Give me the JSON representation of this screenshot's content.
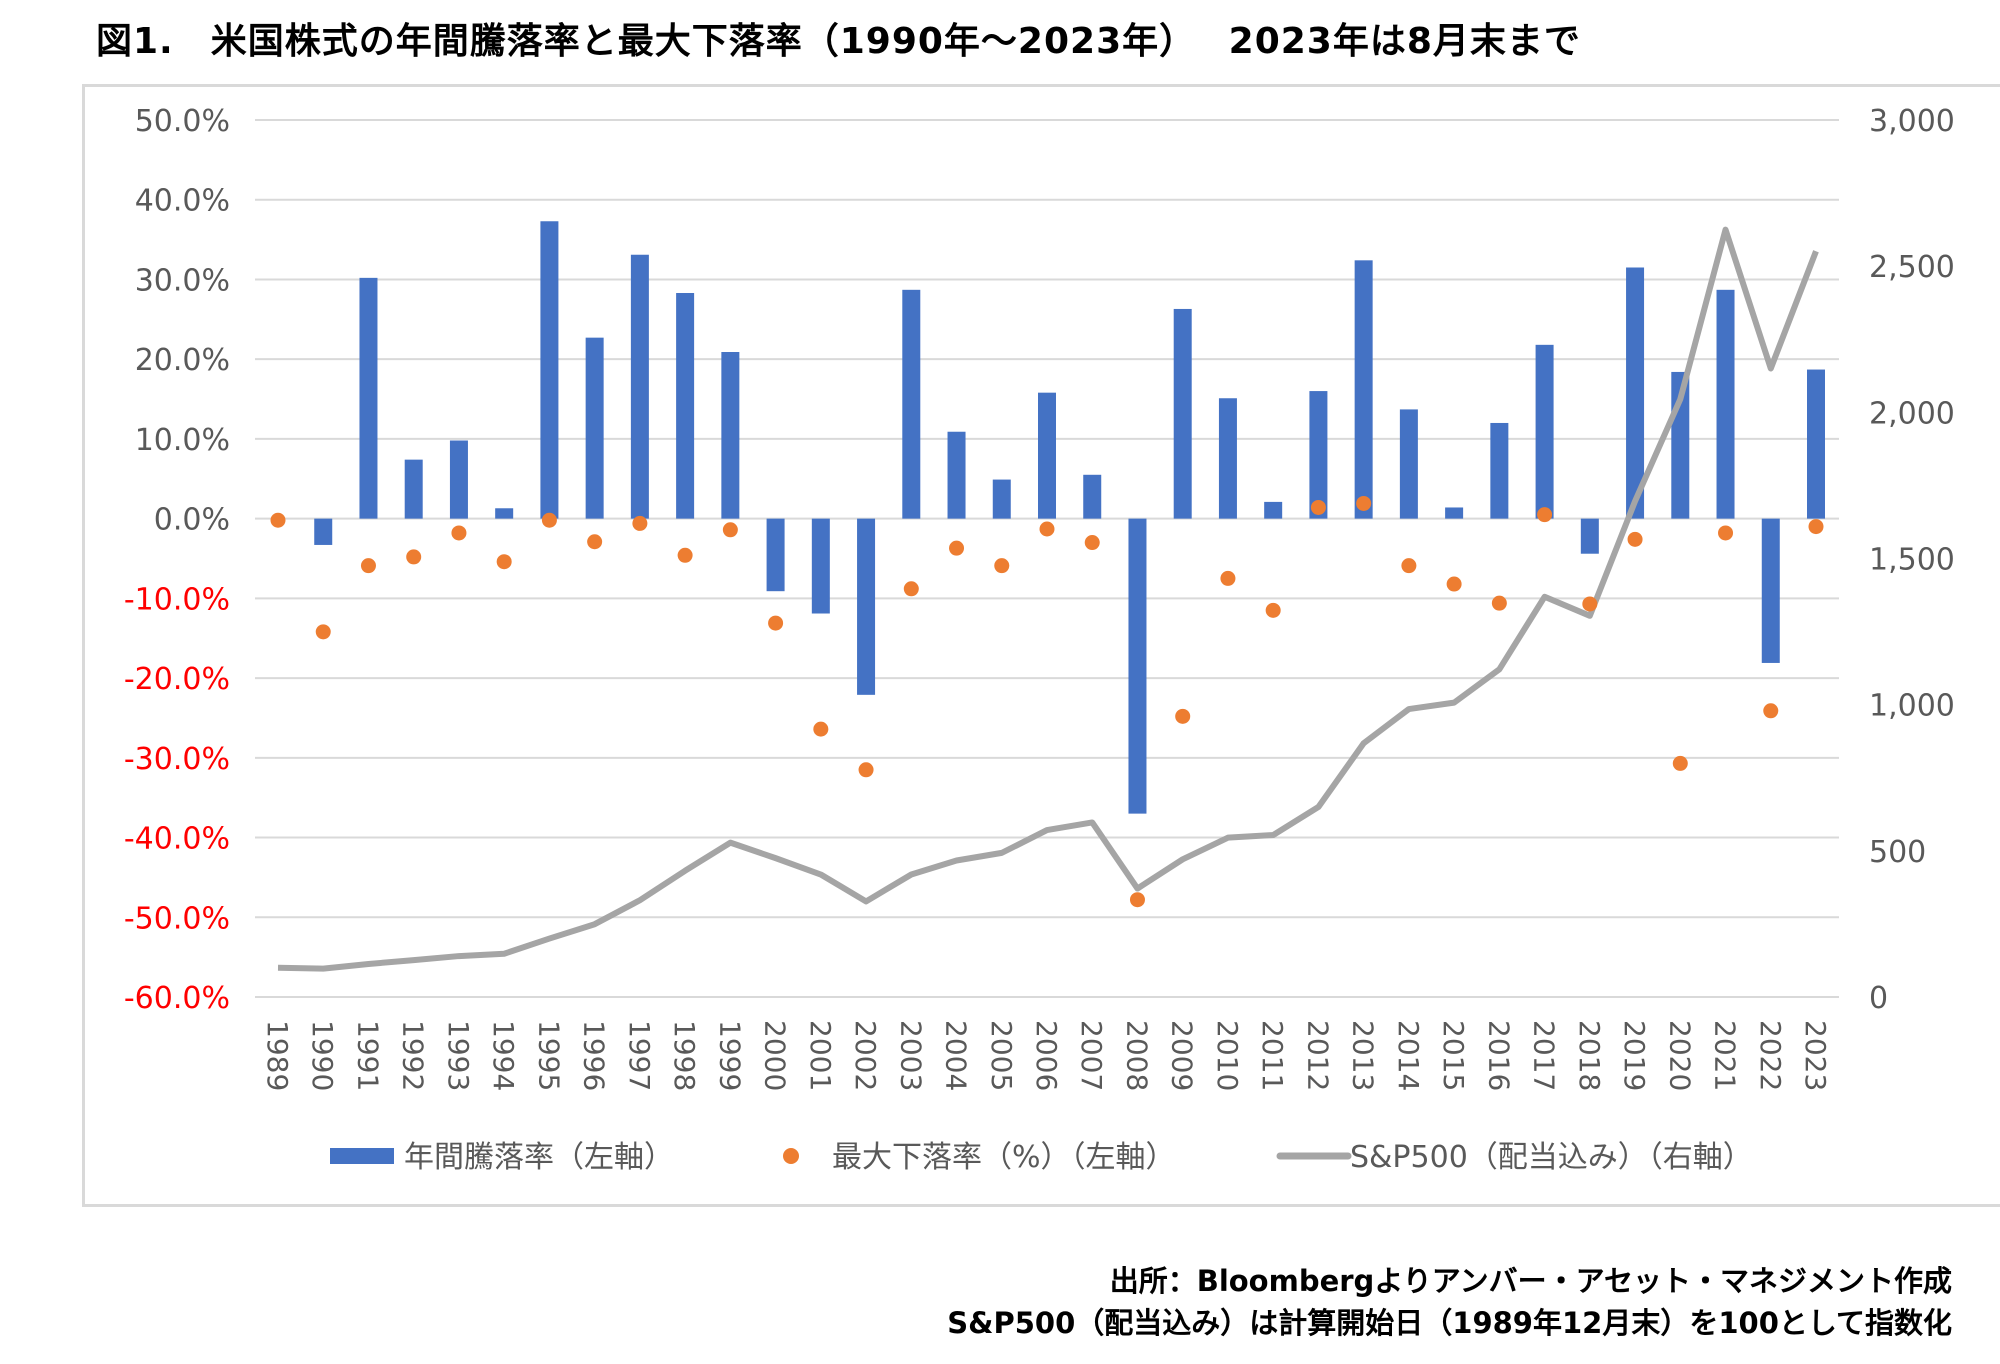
{
  "title": "図1.　米国株式の年間騰落率と最大下落率（1990年～2023年）　 2023年は8月末まで",
  "source_lines": [
    "出所：Bloombergよりアンバー・アセット・マネジメント作成",
    "S&P500（配当込み）は計算開始日（1989年12月末）を100として指数化"
  ],
  "chart_data": {
    "type": "bar+scatter+line",
    "categories": [
      "1989",
      "1990",
      "1991",
      "1992",
      "1993",
      "1994",
      "1995",
      "1996",
      "1997",
      "1998",
      "1999",
      "2000",
      "2001",
      "2002",
      "2003",
      "2004",
      "2005",
      "2006",
      "2007",
      "2008",
      "2009",
      "2010",
      "2011",
      "2012",
      "2013",
      "2014",
      "2015",
      "2016",
      "2017",
      "2018",
      "2019",
      "2020",
      "2021",
      "2022",
      "2023"
    ],
    "left_axis": {
      "ylim": [
        -60,
        50
      ],
      "ticks": [
        "50.0%",
        "40.0%",
        "30.0%",
        "20.0%",
        "10.0%",
        "0.0%",
        "-10.0%",
        "-20.0%",
        "-30.0%",
        "-40.0%",
        "-50.0%",
        "-60.0%"
      ],
      "negative_color": "#ff0000"
    },
    "right_axis": {
      "ylim": [
        0,
        3000
      ],
      "ticks": [
        "3,000",
        "2,500",
        "2,000",
        "1,500",
        "1,000",
        "500",
        "0"
      ]
    },
    "grid": true,
    "legend_position": "bottom",
    "series": [
      {
        "name": "年間騰落率（左軸）",
        "type": "bar",
        "axis": "left",
        "color": "#4472c4",
        "values": [
          0,
          -3.3,
          30.2,
          7.4,
          9.8,
          1.3,
          37.3,
          22.7,
          33.1,
          28.3,
          20.9,
          -9.1,
          -11.9,
          -22.1,
          28.7,
          10.9,
          4.9,
          15.8,
          5.5,
          -37.0,
          26.3,
          15.1,
          2.1,
          16.0,
          32.4,
          13.7,
          1.4,
          12.0,
          21.8,
          -4.4,
          31.5,
          18.4,
          28.7,
          -18.1,
          18.7
        ]
      },
      {
        "name": "最大下落率（%）（左軸）",
        "type": "scatter",
        "axis": "left",
        "color": "#ed7d31",
        "values": [
          -0.2,
          -14.2,
          -5.9,
          -4.8,
          -1.8,
          -5.4,
          -0.2,
          -2.9,
          -0.6,
          -4.6,
          -1.4,
          -13.1,
          -26.4,
          -31.5,
          -8.8,
          -3.7,
          -5.9,
          -1.3,
          -3.0,
          -47.8,
          -24.8,
          -7.5,
          -11.5,
          1.4,
          1.9,
          -5.9,
          -8.2,
          -10.6,
          0.5,
          -10.7,
          -2.6,
          -30.7,
          -1.8,
          -24.1,
          -1.0
        ]
      },
      {
        "name": "S&P500（配当込み）（右軸）",
        "type": "line",
        "axis": "right",
        "color": "#a5a5a5",
        "values": [
          100,
          97,
          113,
          126,
          140,
          148,
          200,
          249,
          331,
          432,
          528,
          475,
          419,
          327,
          419,
          467,
          493,
          571,
          597,
          371,
          471,
          545,
          554,
          650,
          868,
          985,
          1007,
          1121,
          1369,
          1304,
          1696,
          2045,
          2625,
          2150,
          2551
        ]
      }
    ]
  }
}
